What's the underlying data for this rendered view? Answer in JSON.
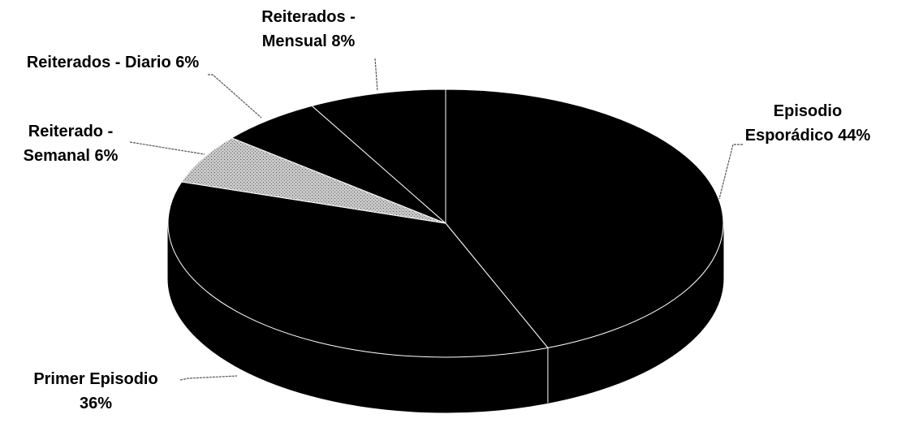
{
  "chart_data": {
    "type": "pie",
    "three_d": true,
    "categories": [
      "Episodio Esporádico",
      "Primer Episodio",
      "Reiterado - Semanal",
      "Reiterados - Diario",
      "Reiterados - Mensual"
    ],
    "values": [
      44,
      36,
      6,
      6,
      8
    ],
    "value_labels": [
      "44%",
      "36%",
      "6%",
      "6%",
      "8%"
    ],
    "colors": [
      "#000000",
      "#000000",
      "#a8a8a8",
      "#000000",
      "#000000"
    ]
  }
}
